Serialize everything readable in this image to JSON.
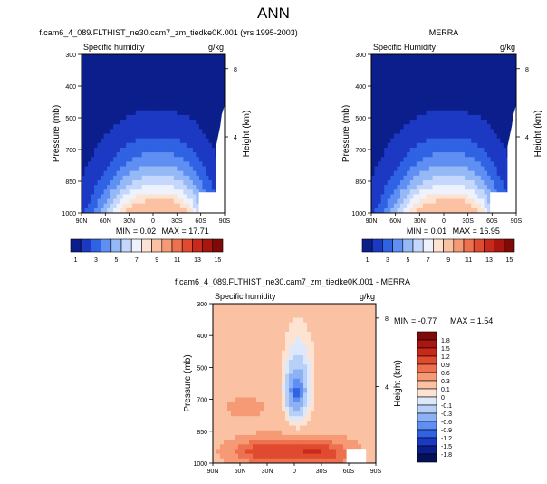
{
  "figure_title": "ANN",
  "panels": [
    {
      "id": "model",
      "title": "f.cam6_4_089.FLTHIST_ne30.cam7_zm_tiedke0K.001 (yrs 1995-2003)",
      "variable": "Specific humidity",
      "units": "g/kg",
      "min_label": "MIN =  0.02",
      "max_label": "MAX =  17.71"
    },
    {
      "id": "obs",
      "title": "MERRA",
      "variable": "Specific Humidity",
      "units": "g/kg",
      "min_label": "MIN =  0.01",
      "max_label": "MAX =  16.95"
    },
    {
      "id": "diff",
      "title": "f.cam6_4_089.FLTHIST_ne30.cam7_zm_tiedke0K.001 - MERRA",
      "variable": "Specific humidity",
      "units": "g/kg",
      "min_label": "MIN = -0.77",
      "max_label": "MAX =  1.54"
    }
  ],
  "axes": {
    "ylabel": "Pressure (mb)",
    "y2label": "Height (km)",
    "pressure_ticks": [
      "300",
      "400",
      "500",
      "700",
      "850",
      "1000"
    ],
    "height_ticks": [
      "8",
      "4"
    ],
    "lat_ticks": [
      "90N",
      "60N",
      "30N",
      "0",
      "30S",
      "60S",
      "90S"
    ]
  },
  "colorbars": {
    "abs_labels": [
      "1",
      "3",
      "5",
      "7",
      "9",
      "11",
      "13",
      "15"
    ],
    "abs_colors": [
      "#0b1e8c",
      "#1c39c4",
      "#2f63e3",
      "#5f8ff2",
      "#95b8f7",
      "#c5d8fb",
      "#eef2fd",
      "#fde3d2",
      "#fbc1a3",
      "#f69a76",
      "#ee714f",
      "#e04a2e",
      "#c9291b",
      "#a9150f",
      "#800a08"
    ],
    "diff_labels": [
      "1.8",
      "1.5",
      "1.2",
      "0.9",
      "0.6",
      "0.3",
      "0.1",
      "0",
      "-0.1",
      "-0.3",
      "-0.6",
      "-0.9",
      "-1.2",
      "-1.5",
      "-1.8"
    ],
    "diff_colors": [
      "#800a08",
      "#a9150f",
      "#c9291b",
      "#e04a2e",
      "#ee714f",
      "#f69a76",
      "#fbc1a3",
      "#fde3d2",
      "#dde9fb",
      "#b7d0f8",
      "#8cb1f4",
      "#5f8ff2",
      "#2f63e3",
      "#1c39c4",
      "#0b1e8c",
      "#06115a"
    ]
  },
  "chart_data": [
    {
      "type": "heatmap",
      "title": "f.cam6_4_089.FLTHIST_ne30.cam7_zm_tiedke0K.001 (yrs 1995-2003)",
      "subtitle": "Specific humidity",
      "units": "g/kg",
      "xlabel": "",
      "ylabel": "Pressure (mb)",
      "y2label": "Height (km)",
      "x_ticks": [
        "90N",
        "60N",
        "30N",
        "0",
        "30S",
        "60S",
        "90S"
      ],
      "y_ticks": [
        300,
        400,
        500,
        700,
        850,
        1000
      ],
      "min": 0.02,
      "max": 17.71,
      "levels": [
        1,
        3,
        5,
        7,
        9,
        11,
        13,
        15
      ]
    },
    {
      "type": "heatmap",
      "title": "MERRA",
      "subtitle": "Specific Humidity",
      "units": "g/kg",
      "xlabel": "",
      "ylabel": "Pressure (mb)",
      "y2label": "Height (km)",
      "x_ticks": [
        "90N",
        "60N",
        "30N",
        "0",
        "30S",
        "60S",
        "90S"
      ],
      "y_ticks": [
        300,
        400,
        500,
        700,
        850,
        1000
      ],
      "min": 0.01,
      "max": 16.95,
      "levels": [
        1,
        3,
        5,
        7,
        9,
        11,
        13,
        15
      ]
    },
    {
      "type": "heatmap",
      "title": "f.cam6_4_089.FLTHIST_ne30.cam7_zm_tiedke0K.001 - MERRA",
      "subtitle": "Specific humidity",
      "units": "g/kg",
      "xlabel": "",
      "ylabel": "Pressure (mb)",
      "y2label": "Height (km)",
      "x_ticks": [
        "90N",
        "60N",
        "30N",
        "0",
        "30S",
        "60S",
        "90S"
      ],
      "y_ticks": [
        300,
        400,
        500,
        700,
        850,
        1000
      ],
      "min": -0.77,
      "max": 1.54,
      "levels": [
        -1.8,
        -1.5,
        -1.2,
        -0.9,
        -0.6,
        -0.3,
        -0.1,
        0,
        0.1,
        0.3,
        0.6,
        0.9,
        1.2,
        1.5,
        1.8
      ]
    }
  ]
}
